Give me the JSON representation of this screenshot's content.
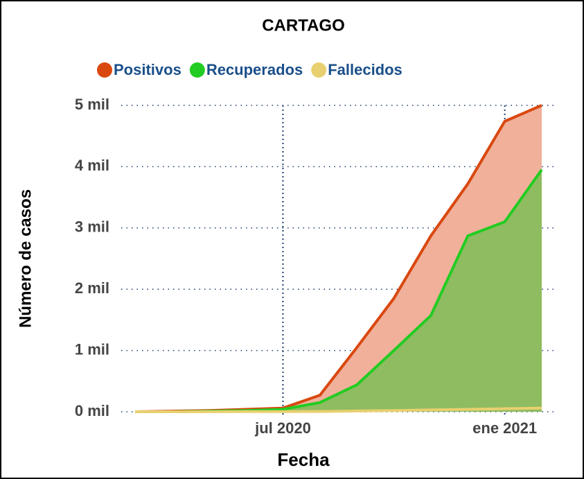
{
  "chart_data": {
    "type": "area",
    "title": "CARTAGO",
    "x_label": "Fecha",
    "y_label": "Número de casos",
    "x": [
      "2020-03",
      "2020-04",
      "2020-05",
      "2020-06",
      "2020-07",
      "2020-08",
      "2020-09",
      "2020-10",
      "2020-11",
      "2020-12",
      "2021-01",
      "2021-02"
    ],
    "series": [
      {
        "name": "Positivos",
        "color": "#d9480f",
        "fill": "#f0b09a",
        "values": [
          0,
          10,
          20,
          40,
          60,
          270,
          1050,
          1850,
          2870,
          3720,
          4740,
          5000
        ]
      },
      {
        "name": "Recuperados",
        "color": "#22cc22",
        "fill": "#8fbc60",
        "values": [
          0,
          0,
          10,
          20,
          40,
          150,
          440,
          1000,
          1570,
          2870,
          3100,
          3950
        ]
      },
      {
        "name": "Fallecidos",
        "color": "#e8d070",
        "values": [
          0,
          0,
          1,
          2,
          3,
          5,
          12,
          20,
          30,
          40,
          50,
          60
        ]
      }
    ],
    "xlim": [
      "2020-03",
      "2021-02"
    ],
    "xticks": [
      {
        "value": "2020-07",
        "label": "jul 2020"
      },
      {
        "value": "2021-01",
        "label": "ene 2021"
      }
    ],
    "ylim": [
      0,
      5000
    ],
    "yticks": [
      {
        "value": 0,
        "label": "0 mil"
      },
      {
        "value": 1000,
        "label": "1 mil"
      },
      {
        "value": 2000,
        "label": "2 mil"
      },
      {
        "value": 3000,
        "label": "3 mil"
      },
      {
        "value": 4000,
        "label": "4 mil"
      },
      {
        "value": 5000,
        "label": "5 mil"
      }
    ],
    "grid": true,
    "legend": "top"
  }
}
